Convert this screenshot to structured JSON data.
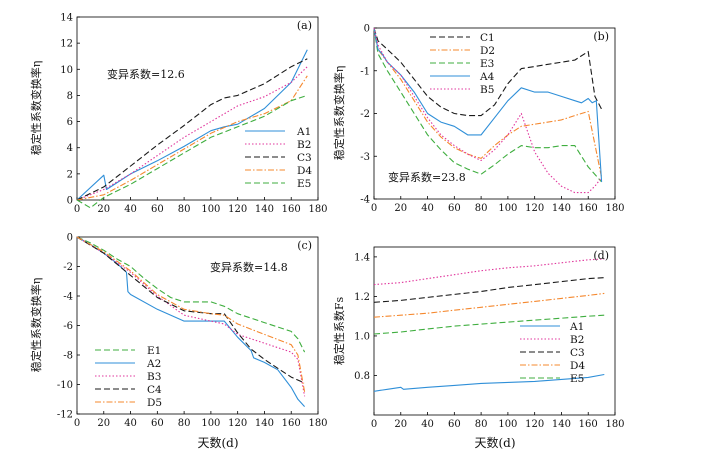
{
  "shared_xlabel": "天数(d)",
  "chart_data": [
    {
      "panel": "(a)",
      "type": "line",
      "ylabel": "稳定性系数变换率η",
      "annotation": "变异系数=12.6",
      "xlim": [
        0,
        180
      ],
      "ylim": [
        0,
        14
      ],
      "xticks": [
        0,
        20,
        40,
        60,
        80,
        100,
        120,
        140,
        160,
        180
      ],
      "yticks": [
        0,
        2,
        4,
        6,
        8,
        10,
        12,
        14
      ],
      "legend_position": "bottom-right",
      "series": [
        {
          "name": "A1",
          "color": "#2f8fd8",
          "dash": "solid",
          "x": [
            0,
            20,
            22,
            40,
            60,
            80,
            100,
            110,
            120,
            140,
            160,
            172
          ],
          "y": [
            0,
            1.9,
            0.8,
            2.0,
            3.0,
            4.1,
            5.3,
            5.6,
            5.8,
            7.0,
            9.0,
            11.5
          ]
        },
        {
          "name": "B2",
          "color": "#e0359c",
          "dash": "dot",
          "x": [
            0,
            20,
            40,
            60,
            80,
            100,
            120,
            140,
            160,
            172
          ],
          "y": [
            0,
            0.8,
            2.0,
            3.4,
            4.8,
            6.0,
            7.2,
            7.9,
            9.0,
            10.2
          ]
        },
        {
          "name": "C3",
          "color": "#1a1a1a",
          "dash": "dash",
          "x": [
            0,
            20,
            40,
            60,
            80,
            100,
            110,
            120,
            140,
            160,
            172
          ],
          "y": [
            0,
            1.0,
            2.6,
            4.2,
            5.7,
            7.3,
            7.8,
            8.0,
            8.9,
            10.2,
            10.8
          ]
        },
        {
          "name": "D4",
          "color": "#f5882e",
          "dash": "dashdot",
          "x": [
            0,
            20,
            40,
            60,
            80,
            100,
            120,
            140,
            160,
            172
          ],
          "y": [
            0,
            0.4,
            1.5,
            2.7,
            3.9,
            5.1,
            6.0,
            6.6,
            7.6,
            9.5
          ]
        },
        {
          "name": "E5",
          "color": "#3fae3f",
          "dash": "dash",
          "x": [
            0,
            10,
            20,
            40,
            60,
            80,
            100,
            120,
            140,
            160,
            172
          ],
          "y": [
            0,
            -0.6,
            0.2,
            1.2,
            2.4,
            3.6,
            4.8,
            5.6,
            6.4,
            7.6,
            8.0
          ]
        }
      ]
    },
    {
      "panel": "(b)",
      "type": "line",
      "ylabel": "稳定性系数变换率η",
      "annotation": "变异系数=23.8",
      "xlim": [
        0,
        180
      ],
      "ylim": [
        -4,
        0
      ],
      "xticks": [
        0,
        20,
        40,
        60,
        80,
        100,
        120,
        140,
        160,
        180
      ],
      "yticks": [
        0,
        -1,
        -2,
        -3,
        -4
      ],
      "legend_position": "top-center",
      "series": [
        {
          "name": "C1",
          "color": "#1a1a1a",
          "dash": "dash",
          "x": [
            0,
            3,
            10,
            20,
            30,
            40,
            50,
            60,
            70,
            80,
            90,
            100,
            110,
            120,
            130,
            140,
            150,
            160,
            165,
            170
          ],
          "y": [
            0,
            -0.3,
            -0.5,
            -0.8,
            -1.2,
            -1.6,
            -1.85,
            -2.0,
            -2.05,
            -2.05,
            -1.8,
            -1.3,
            -0.95,
            -0.9,
            -0.85,
            -0.8,
            -0.75,
            -0.55,
            -1.6,
            -1.9
          ]
        },
        {
          "name": "D2",
          "color": "#f5882e",
          "dash": "dashdot",
          "x": [
            0,
            3,
            10,
            20,
            30,
            40,
            50,
            60,
            70,
            80,
            90,
            100,
            110,
            120,
            130,
            140,
            150,
            160,
            170
          ],
          "y": [
            0,
            -0.5,
            -0.8,
            -1.2,
            -1.7,
            -2.2,
            -2.55,
            -2.8,
            -2.95,
            -3.05,
            -2.75,
            -2.5,
            -2.3,
            -2.25,
            -2.2,
            -2.15,
            -2.05,
            -1.95,
            -3.5
          ]
        },
        {
          "name": "E3",
          "color": "#3fae3f",
          "dash": "dash",
          "x": [
            0,
            3,
            10,
            20,
            30,
            40,
            50,
            60,
            70,
            80,
            90,
            100,
            110,
            120,
            130,
            140,
            150,
            160,
            170
          ],
          "y": [
            0,
            -0.6,
            -1.0,
            -1.5,
            -2.0,
            -2.5,
            -2.85,
            -3.15,
            -3.3,
            -3.42,
            -3.2,
            -2.95,
            -2.75,
            -2.8,
            -2.8,
            -2.75,
            -2.75,
            -3.25,
            -3.6
          ]
        },
        {
          "name": "A4",
          "color": "#2f8fd8",
          "dash": "solid",
          "x": [
            0,
            3,
            6,
            10,
            20,
            30,
            40,
            50,
            60,
            70,
            80,
            90,
            100,
            110,
            120,
            130,
            140,
            150,
            155,
            160,
            163,
            166,
            170
          ],
          "y": [
            0,
            -0.5,
            -0.6,
            -0.8,
            -1.1,
            -1.5,
            -2.0,
            -2.2,
            -2.3,
            -2.5,
            -2.5,
            -2.1,
            -1.7,
            -1.4,
            -1.5,
            -1.5,
            -1.6,
            -1.7,
            -1.75,
            -1.65,
            -1.75,
            -1.7,
            -3.6
          ]
        },
        {
          "name": "B5",
          "color": "#e0359c",
          "dash": "dot",
          "x": [
            0,
            3,
            10,
            20,
            30,
            40,
            50,
            60,
            70,
            80,
            90,
            100,
            110,
            120,
            130,
            140,
            150,
            160,
            165,
            170
          ],
          "y": [
            0,
            -0.4,
            -0.8,
            -1.1,
            -1.6,
            -2.1,
            -2.5,
            -2.75,
            -2.95,
            -3.1,
            -2.85,
            -2.5,
            -2.0,
            -2.9,
            -3.4,
            -3.7,
            -3.85,
            -3.85,
            -3.7,
            -3.5
          ]
        }
      ]
    },
    {
      "panel": "(c)",
      "type": "line",
      "ylabel": "稳定性系数变换率η",
      "annotation": "变异系数=14.8",
      "xlim": [
        0,
        180
      ],
      "ylim": [
        -12,
        0
      ],
      "xticks": [
        0,
        20,
        40,
        60,
        80,
        100,
        120,
        140,
        160,
        180
      ],
      "yticks": [
        0,
        -2,
        -4,
        -6,
        -8,
        -10,
        -12
      ],
      "legend_position": "bottom-left",
      "series": [
        {
          "name": "E1",
          "color": "#3fae3f",
          "dash": "dash",
          "x": [
            0,
            10,
            20,
            30,
            40,
            50,
            60,
            70,
            80,
            100,
            110,
            120,
            140,
            160,
            165,
            170
          ],
          "y": [
            0,
            -0.4,
            -0.9,
            -1.5,
            -2.0,
            -2.8,
            -3.5,
            -4.1,
            -4.4,
            -4.4,
            -4.7,
            -5.2,
            -5.8,
            -6.4,
            -6.9,
            -7.8
          ]
        },
        {
          "name": "A2",
          "color": "#2f8fd8",
          "dash": "solid",
          "x": [
            0,
            10,
            20,
            30,
            37,
            38,
            40,
            60,
            80,
            100,
            110,
            120,
            130,
            132,
            140,
            150,
            160,
            165,
            170
          ],
          "y": [
            0,
            -0.5,
            -1.1,
            -1.8,
            -2.4,
            -3.7,
            -3.9,
            -4.9,
            -5.7,
            -5.7,
            -5.7,
            -6.8,
            -7.7,
            -8.2,
            -8.5,
            -9.0,
            -10.2,
            -11.0,
            -11.5
          ]
        },
        {
          "name": "B3",
          "color": "#e0359c",
          "dash": "dot",
          "x": [
            0,
            20,
            40,
            60,
            80,
            100,
            110,
            120,
            140,
            160,
            165,
            170
          ],
          "y": [
            0,
            -1.1,
            -2.4,
            -4.0,
            -5.3,
            -5.7,
            -5.9,
            -6.6,
            -7.2,
            -7.8,
            -8.3,
            -10.8
          ]
        },
        {
          "name": "C4",
          "color": "#1a1a1a",
          "dash": "dash",
          "x": [
            0,
            20,
            40,
            60,
            80,
            100,
            110,
            120,
            130,
            140,
            150,
            160,
            170
          ],
          "y": [
            0,
            -1.1,
            -2.6,
            -4.1,
            -5.0,
            -5.2,
            -5.2,
            -6.5,
            -7.6,
            -8.3,
            -8.9,
            -9.5,
            -9.9
          ]
        },
        {
          "name": "D5",
          "color": "#f5882e",
          "dash": "dashdot",
          "x": [
            0,
            20,
            40,
            60,
            80,
            100,
            110,
            120,
            140,
            160,
            165,
            170
          ],
          "y": [
            0,
            -1.0,
            -2.3,
            -3.9,
            -4.9,
            -5.2,
            -5.3,
            -5.9,
            -6.6,
            -7.3,
            -8.0,
            -10.5
          ]
        }
      ]
    },
    {
      "panel": "(d)",
      "type": "line",
      "ylabel": "稳定性系数Fs",
      "annotation": "",
      "xlim": [
        0,
        180
      ],
      "ylim": [
        0.6,
        1.45
      ],
      "xticks": [
        0,
        20,
        40,
        60,
        80,
        100,
        120,
        140,
        160,
        180
      ],
      "yticks": [
        0.8,
        1.0,
        1.2,
        1.4
      ],
      "legend_position": "center-right",
      "series": [
        {
          "name": "A1",
          "color": "#2f8fd8",
          "dash": "solid",
          "x": [
            0,
            10,
            20,
            22,
            40,
            60,
            80,
            100,
            120,
            140,
            160,
            172
          ],
          "y": [
            0.72,
            0.73,
            0.74,
            0.73,
            0.74,
            0.75,
            0.76,
            0.765,
            0.77,
            0.78,
            0.79,
            0.805
          ]
        },
        {
          "name": "B2",
          "color": "#e0359c",
          "dash": "dot",
          "x": [
            0,
            20,
            40,
            60,
            80,
            100,
            120,
            140,
            160,
            172
          ],
          "y": [
            1.26,
            1.27,
            1.29,
            1.31,
            1.33,
            1.345,
            1.355,
            1.37,
            1.385,
            1.39
          ]
        },
        {
          "name": "C3",
          "color": "#1a1a1a",
          "dash": "dash",
          "x": [
            0,
            20,
            40,
            60,
            80,
            100,
            120,
            140,
            160,
            172
          ],
          "y": [
            1.17,
            1.18,
            1.195,
            1.21,
            1.225,
            1.245,
            1.26,
            1.275,
            1.29,
            1.295
          ]
        },
        {
          "name": "D4",
          "color": "#f5882e",
          "dash": "dashdot",
          "x": [
            0,
            20,
            40,
            60,
            80,
            100,
            120,
            140,
            160,
            172
          ],
          "y": [
            1.095,
            1.105,
            1.115,
            1.13,
            1.145,
            1.16,
            1.175,
            1.19,
            1.205,
            1.215
          ]
        },
        {
          "name": "E5",
          "color": "#3fae3f",
          "dash": "dash",
          "x": [
            0,
            20,
            40,
            60,
            80,
            100,
            120,
            140,
            160,
            172
          ],
          "y": [
            1.01,
            1.02,
            1.035,
            1.05,
            1.06,
            1.07,
            1.08,
            1.09,
            1.1,
            1.105
          ]
        }
      ]
    }
  ]
}
